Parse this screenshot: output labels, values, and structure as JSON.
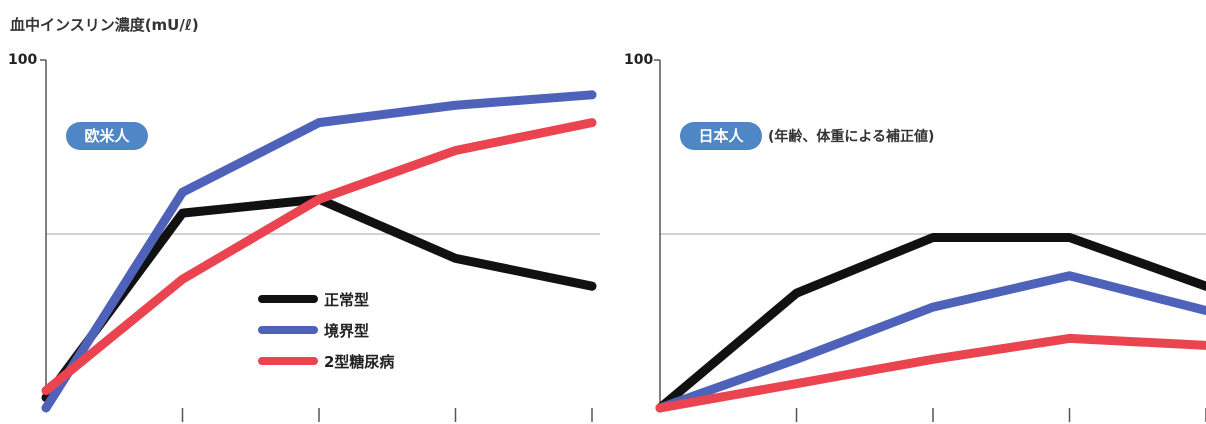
{
  "colors": {
    "normal": "#111111",
    "borderline": "#4f62b9",
    "diabetes": "#e9444f",
    "badge": "#4f86c6",
    "axis": "#555555",
    "gridline": "#b8b8b8"
  },
  "chart_data": [
    {
      "type": "line",
      "ylabel": "血中インスリン濃度(mU/ℓ)",
      "ymax_label": "100",
      "ylim": [
        0,
        100
      ],
      "badge": "欧米人",
      "note": "",
      "gridline_y": 50,
      "x": [
        0,
        1,
        2,
        3,
        4
      ],
      "series": [
        {
          "name": "正常型",
          "color_key": "normal",
          "values": [
            3,
            56,
            60,
            43,
            35
          ]
        },
        {
          "name": "境界型",
          "color_key": "borderline",
          "values": [
            0,
            62,
            82,
            87,
            90
          ]
        },
        {
          "name": "2型糖尿病",
          "color_key": "diabetes",
          "values": [
            5,
            37,
            60,
            74,
            82
          ]
        }
      ]
    },
    {
      "type": "line",
      "ylabel": "",
      "ymax_label": "100",
      "ylim": [
        0,
        100
      ],
      "badge": "日本人",
      "note": "(年齢、体重による補正値)",
      "gridline_y": 50,
      "x": [
        0,
        1,
        2,
        3,
        4
      ],
      "series": [
        {
          "name": "正常型",
          "color_key": "normal",
          "values": [
            0,
            33,
            49,
            49,
            35
          ]
        },
        {
          "name": "境界型",
          "color_key": "borderline",
          "values": [
            0,
            14,
            29,
            38,
            28
          ]
        },
        {
          "name": "2型糖尿病",
          "color_key": "diabetes",
          "values": [
            0,
            7,
            14,
            20,
            18
          ]
        }
      ]
    }
  ],
  "legend": [
    {
      "label": "正常型",
      "color_key": "normal"
    },
    {
      "label": "境界型",
      "color_key": "borderline"
    },
    {
      "label": "2型糖尿病",
      "color_key": "diabetes"
    }
  ]
}
